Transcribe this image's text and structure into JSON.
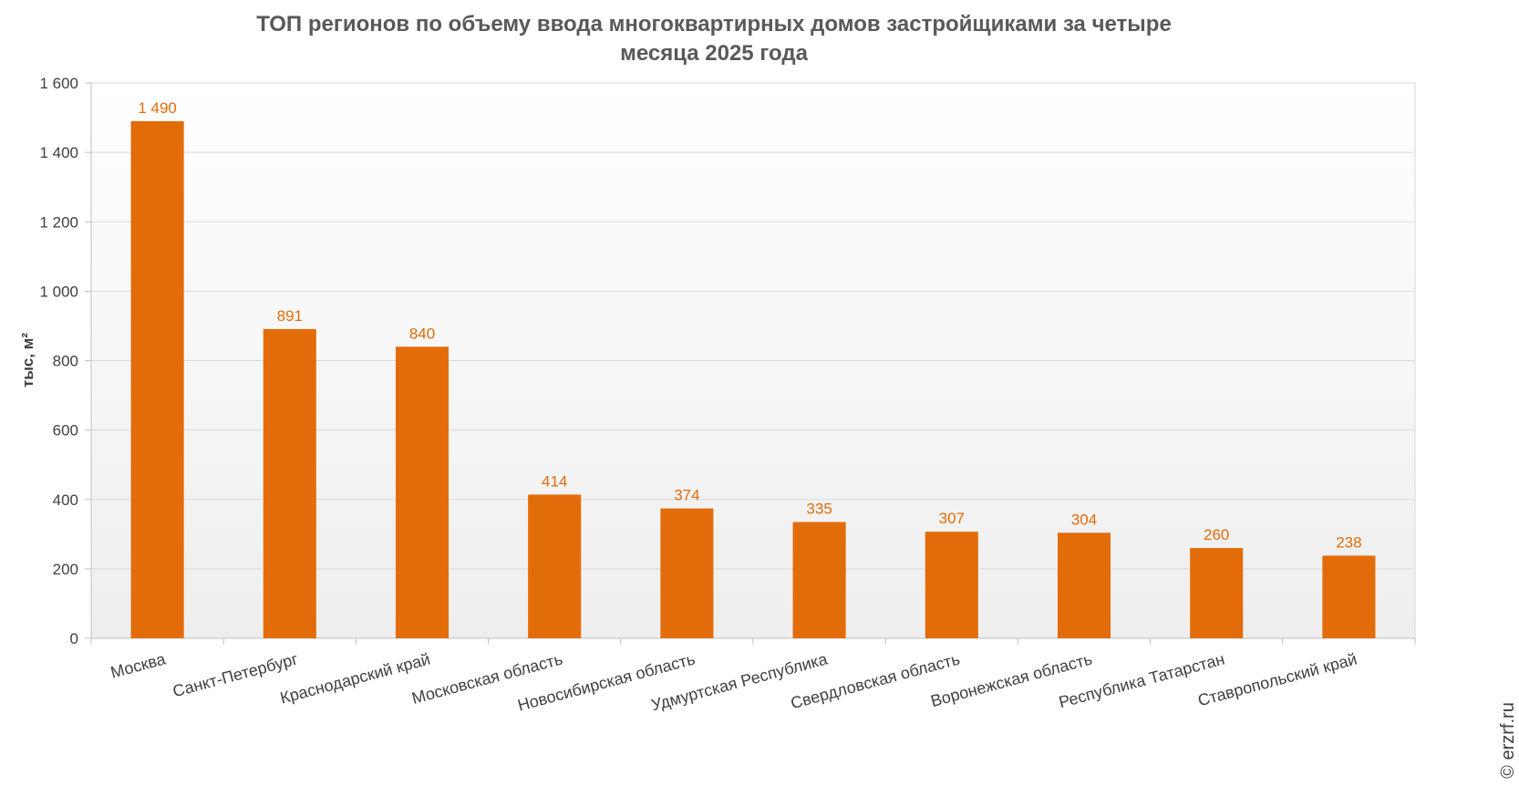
{
  "chart_data": {
    "type": "bar",
    "title_lines": [
      "ТОП регионов по объему ввода многоквартирных домов застройщиками за четыре",
      "месяца 2025 года"
    ],
    "ylabel": "тыс, м²",
    "ylim": [
      0,
      1600
    ],
    "yticks": [
      0,
      200,
      400,
      600,
      800,
      1000,
      1200,
      1400,
      1600
    ],
    "ytick_labels": [
      "0",
      "200",
      "400",
      "600",
      "800",
      "1 000",
      "1 200",
      "1 400",
      "1 600"
    ],
    "categories": [
      "Москва",
      "Санкт-Петербург",
      "Краснодарский край",
      "Московская область",
      "Новосибирская область",
      "Удмуртская Республика",
      "Свердловская область",
      "Воронежская область",
      "Республика Татарстан",
      "Ставропольский край"
    ],
    "values": [
      1490,
      891,
      840,
      414,
      374,
      335,
      307,
      304,
      260,
      238
    ],
    "value_labels": [
      "1 490",
      "891",
      "840",
      "414",
      "374",
      "335",
      "307",
      "304",
      "260",
      "238"
    ],
    "bar_color": "#e36c0a",
    "label_color": "#e36c0a",
    "grid": true,
    "legend": false
  },
  "watermark": "© erzrf.ru"
}
